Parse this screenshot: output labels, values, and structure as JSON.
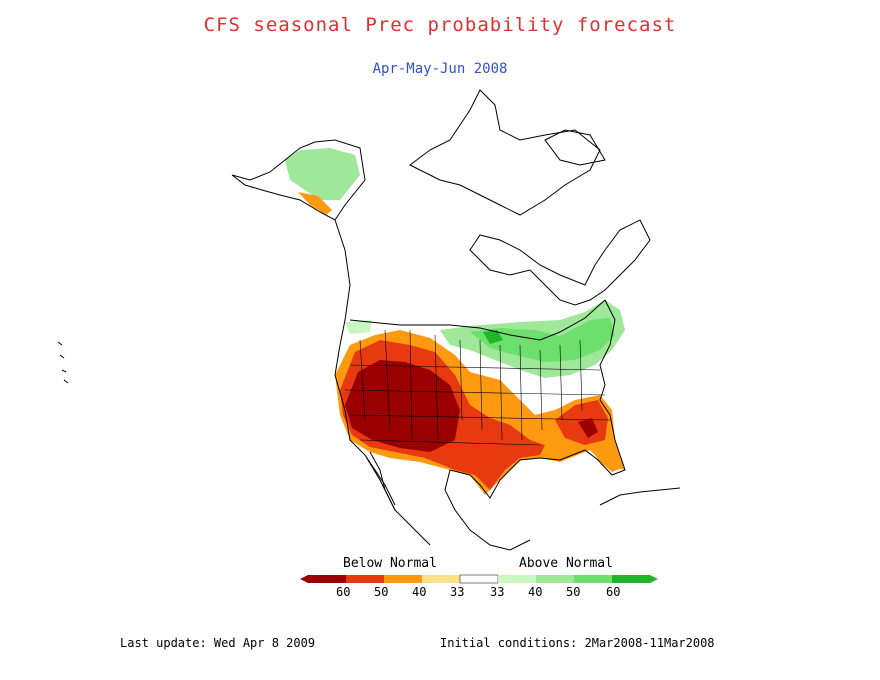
{
  "title": "CFS seasonal Prec probability forecast",
  "subtitle": "Apr-May-Jun 2008",
  "colors": {
    "title": "#e03030",
    "subtitle": "#3050d0",
    "below_60": "#9b0000",
    "below_50": "#e83a10",
    "below_40": "#ff9a10",
    "below_33": "#ffe088",
    "neutral": "#ffffff",
    "above_33": "#c8f7c0",
    "above_40": "#9fe89a",
    "above_50": "#6ddf6d",
    "above_60": "#22b42a"
  },
  "legend": {
    "below_label": "Below Normal",
    "above_label": "Above Normal",
    "ticks": [
      "60",
      "50",
      "40",
      "33",
      "33",
      "40",
      "50",
      "60"
    ]
  },
  "footer": {
    "last_update": "Last update: Wed Apr 8 2009",
    "initial_conditions": "Initial conditions: 2Mar2008-11Mar2008"
  }
}
